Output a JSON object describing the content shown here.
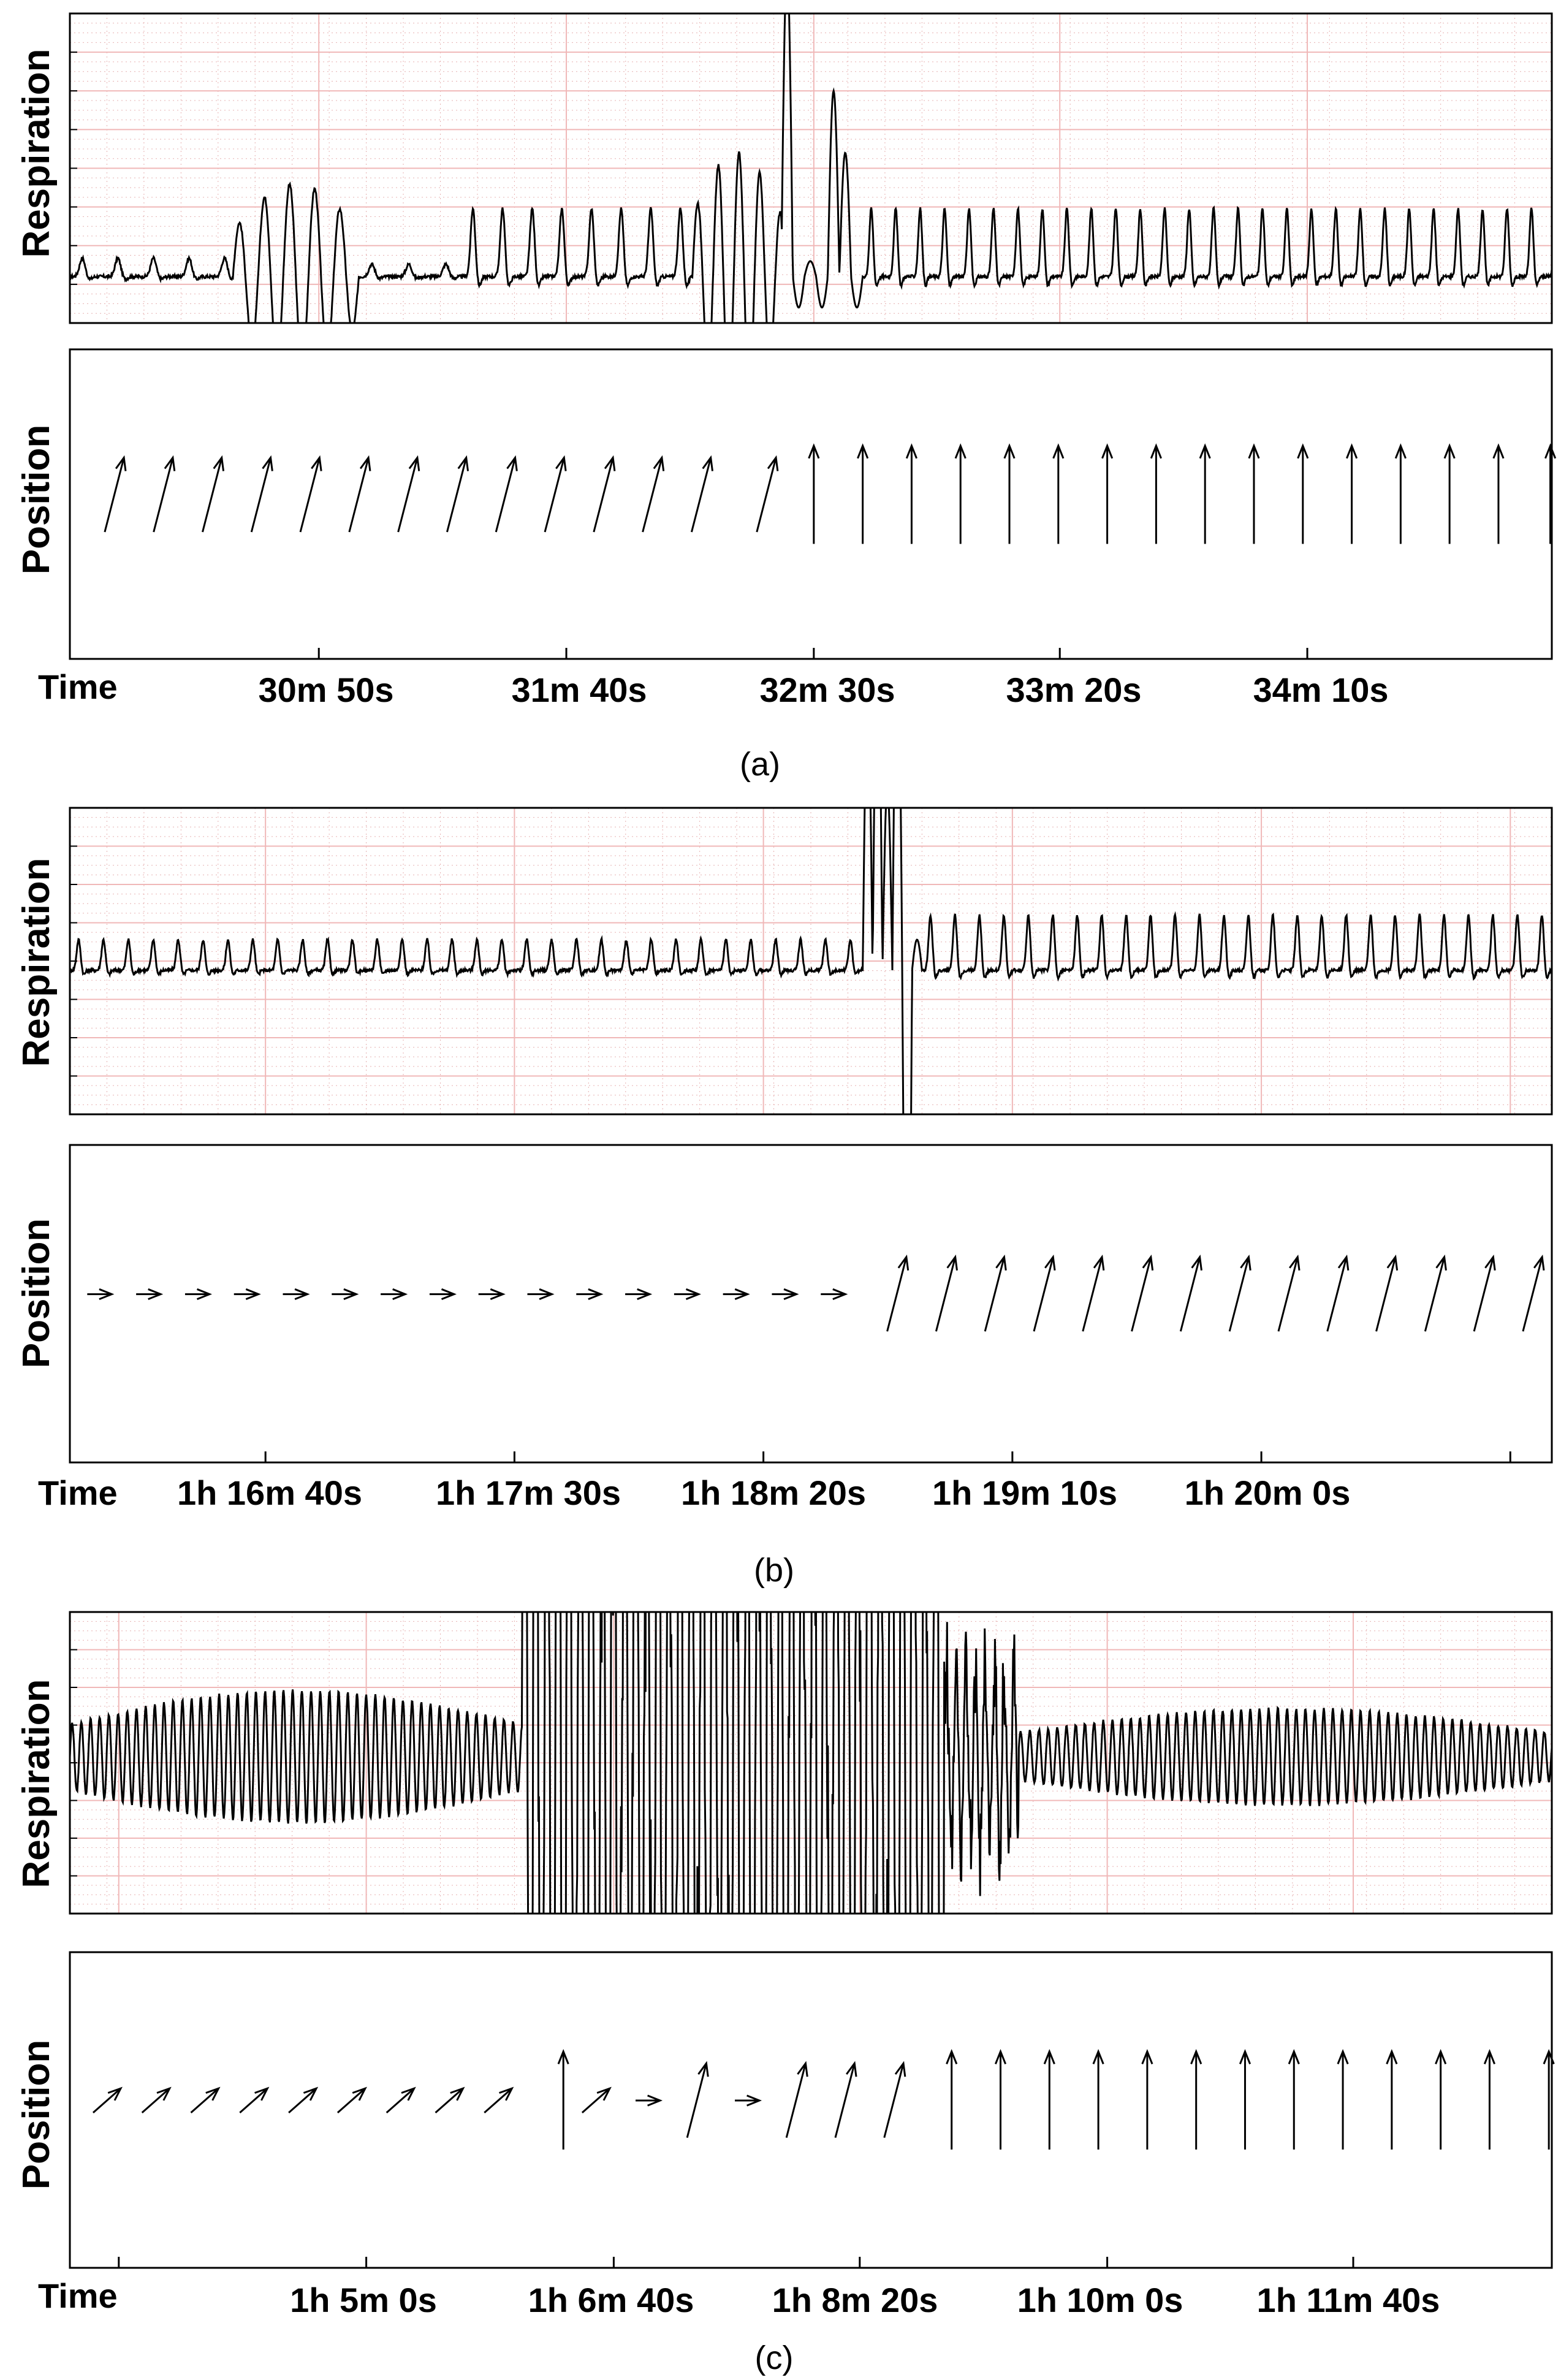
{
  "chart_data": [
    {
      "panel": "a",
      "caption": "(a)",
      "type": "line",
      "respiration": {
        "ylabel": "Respiration",
        "baseline": 0.15,
        "segments": [
          {
            "t0": 0.0,
            "t1": 0.11,
            "period": 0.024,
            "amp": 0.06,
            "shape": "peaky"
          },
          {
            "t0": 0.11,
            "t1": 0.195,
            "period": 0.017,
            "amp": 0.3,
            "shape": "osc"
          },
          {
            "t0": 0.195,
            "t1": 0.265,
            "period": 0.025,
            "amp": 0.04,
            "shape": "peaky"
          },
          {
            "t0": 0.265,
            "t1": 0.42,
            "period": 0.02,
            "amp": 0.22,
            "shape": "peaky"
          },
          {
            "t0": 0.42,
            "t1": 0.48,
            "period": 0.014,
            "amp": 0.4,
            "shape": "osc"
          },
          {
            "t0": 0.48,
            "t1": 0.535,
            "period": 0.01,
            "amp": 0.0,
            "shape": "artifact",
            "peaks": [
              1.0,
              -0.1,
              0.05,
              -0.1,
              0.6,
              0.4,
              -0.1
            ]
          },
          {
            "t0": 0.535,
            "t1": 1.0,
            "period": 0.0165,
            "amp": 0.22,
            "shape": "peaky"
          }
        ]
      },
      "position": {
        "ylabel": "Position",
        "arrows": [
          {
            "t": 0.03,
            "dir": "up-right"
          },
          {
            "t": 0.063,
            "dir": "up-right"
          },
          {
            "t": 0.096,
            "dir": "up-right"
          },
          {
            "t": 0.129,
            "dir": "up-right"
          },
          {
            "t": 0.162,
            "dir": "up-right"
          },
          {
            "t": 0.195,
            "dir": "up-right"
          },
          {
            "t": 0.228,
            "dir": "up-right"
          },
          {
            "t": 0.261,
            "dir": "up-right"
          },
          {
            "t": 0.294,
            "dir": "up-right"
          },
          {
            "t": 0.327,
            "dir": "up-right"
          },
          {
            "t": 0.36,
            "dir": "up-right"
          },
          {
            "t": 0.393,
            "dir": "up-right"
          },
          {
            "t": 0.426,
            "dir": "up-right"
          },
          {
            "t": 0.47,
            "dir": "up-right"
          },
          {
            "t": 0.502,
            "dir": "up"
          },
          {
            "t": 0.535,
            "dir": "up"
          },
          {
            "t": 0.568,
            "dir": "up"
          },
          {
            "t": 0.601,
            "dir": "up"
          },
          {
            "t": 0.634,
            "dir": "up"
          },
          {
            "t": 0.667,
            "dir": "up"
          },
          {
            "t": 0.7,
            "dir": "up"
          },
          {
            "t": 0.733,
            "dir": "up"
          },
          {
            "t": 0.766,
            "dir": "up"
          },
          {
            "t": 0.799,
            "dir": "up"
          },
          {
            "t": 0.832,
            "dir": "up"
          },
          {
            "t": 0.865,
            "dir": "up"
          },
          {
            "t": 0.898,
            "dir": "up"
          },
          {
            "t": 0.931,
            "dir": "up"
          },
          {
            "t": 0.964,
            "dir": "up"
          },
          {
            "t": 0.999,
            "dir": "up"
          }
        ]
      },
      "xlabel": "Time",
      "xticks": [
        {
          "t": 0.0,
          "label": ""
        },
        {
          "t": 0.168,
          "label": "30m 50s"
        },
        {
          "t": 0.335,
          "label": "31m 40s"
        },
        {
          "t": 0.502,
          "label": "32m 30s"
        },
        {
          "t": 0.668,
          "label": "33m 20s"
        },
        {
          "t": 0.835,
          "label": "34m 10s"
        }
      ],
      "grid": true
    },
    {
      "panel": "b",
      "caption": "(b)",
      "type": "line",
      "respiration": {
        "ylabel": "Respiration",
        "baseline": 0.47,
        "segments": [
          {
            "t0": 0.0,
            "t1": 0.535,
            "period": 0.0168,
            "amp": 0.1,
            "shape": "peaky"
          },
          {
            "t0": 0.535,
            "t1": 0.575,
            "period": 0.008,
            "amp": 0.0,
            "shape": "artifact",
            "peaks": [
              0.9,
              1.1,
              0.6,
              1.2,
              -1.5,
              0.1
            ]
          },
          {
            "t0": 0.575,
            "t1": 1.0,
            "period": 0.0165,
            "amp": 0.18,
            "shape": "peaky"
          }
        ]
      },
      "position": {
        "ylabel": "Position",
        "arrows": [
          {
            "t": 0.02,
            "dir": "right"
          },
          {
            "t": 0.053,
            "dir": "right"
          },
          {
            "t": 0.086,
            "dir": "right"
          },
          {
            "t": 0.119,
            "dir": "right"
          },
          {
            "t": 0.152,
            "dir": "right"
          },
          {
            "t": 0.185,
            "dir": "right"
          },
          {
            "t": 0.218,
            "dir": "right"
          },
          {
            "t": 0.251,
            "dir": "right"
          },
          {
            "t": 0.284,
            "dir": "right"
          },
          {
            "t": 0.317,
            "dir": "right"
          },
          {
            "t": 0.35,
            "dir": "right"
          },
          {
            "t": 0.383,
            "dir": "right"
          },
          {
            "t": 0.416,
            "dir": "right"
          },
          {
            "t": 0.449,
            "dir": "right"
          },
          {
            "t": 0.482,
            "dir": "right"
          },
          {
            "t": 0.515,
            "dir": "right"
          },
          {
            "t": 0.558,
            "dir": "up-right"
          },
          {
            "t": 0.591,
            "dir": "up-right"
          },
          {
            "t": 0.624,
            "dir": "up-right"
          },
          {
            "t": 0.657,
            "dir": "up-right"
          },
          {
            "t": 0.69,
            "dir": "up-right"
          },
          {
            "t": 0.723,
            "dir": "up-right"
          },
          {
            "t": 0.756,
            "dir": "up-right"
          },
          {
            "t": 0.789,
            "dir": "up-right"
          },
          {
            "t": 0.822,
            "dir": "up-right"
          },
          {
            "t": 0.855,
            "dir": "up-right"
          },
          {
            "t": 0.888,
            "dir": "up-right"
          },
          {
            "t": 0.921,
            "dir": "up-right"
          },
          {
            "t": 0.954,
            "dir": "up-right"
          },
          {
            "t": 0.987,
            "dir": "up-right"
          }
        ]
      },
      "xlabel": "Time",
      "xticks": [
        {
          "t": 0.0,
          "label": ""
        },
        {
          "t": 0.132,
          "label": "1h 16m 40s"
        },
        {
          "t": 0.3,
          "label": "1h 17m 30s"
        },
        {
          "t": 0.468,
          "label": "1h 18m 20s"
        },
        {
          "t": 0.636,
          "label": "1h 19m 10s"
        },
        {
          "t": 0.804,
          "label": "1h 20m 0s"
        },
        {
          "t": 0.972,
          "label": ""
        }
      ],
      "grid": true
    },
    {
      "panel": "c",
      "caption": "(c)",
      "type": "line",
      "respiration": {
        "ylabel": "Respiration",
        "baseline": 0.52,
        "segments": [
          {
            "t0": 0.0,
            "t1": 0.305,
            "period": 0.0062,
            "amp": 0.22,
            "shape": "osc"
          },
          {
            "t0": 0.305,
            "t1": 0.59,
            "period": 0.0075,
            "amp": 1.8,
            "shape": "chaos"
          },
          {
            "t0": 0.59,
            "t1": 0.64,
            "period": 0.0065,
            "amp": 0.35,
            "shape": "chaos"
          },
          {
            "t0": 0.64,
            "t1": 1.0,
            "period": 0.0062,
            "amp": 0.16,
            "shape": "osc"
          }
        ]
      },
      "position": {
        "ylabel": "Position",
        "arrows": [
          {
            "t": 0.025,
            "dir": "up-right-shallow"
          },
          {
            "t": 0.058,
            "dir": "up-right-shallow"
          },
          {
            "t": 0.091,
            "dir": "up-right-shallow"
          },
          {
            "t": 0.124,
            "dir": "up-right-shallow"
          },
          {
            "t": 0.157,
            "dir": "up-right-shallow"
          },
          {
            "t": 0.19,
            "dir": "up-right-shallow"
          },
          {
            "t": 0.223,
            "dir": "up-right-shallow"
          },
          {
            "t": 0.256,
            "dir": "up-right-shallow"
          },
          {
            "t": 0.289,
            "dir": "up-right-shallow"
          },
          {
            "t": 0.333,
            "dir": "up"
          },
          {
            "t": 0.355,
            "dir": "up-right-shallow"
          },
          {
            "t": 0.39,
            "dir": "right"
          },
          {
            "t": 0.423,
            "dir": "up-right"
          },
          {
            "t": 0.457,
            "dir": "right"
          },
          {
            "t": 0.49,
            "dir": "up-right"
          },
          {
            "t": 0.523,
            "dir": "up-right"
          },
          {
            "t": 0.556,
            "dir": "up-right"
          },
          {
            "t": 0.595,
            "dir": "up"
          },
          {
            "t": 0.628,
            "dir": "up"
          },
          {
            "t": 0.661,
            "dir": "up"
          },
          {
            "t": 0.694,
            "dir": "up"
          },
          {
            "t": 0.727,
            "dir": "up"
          },
          {
            "t": 0.76,
            "dir": "up"
          },
          {
            "t": 0.793,
            "dir": "up"
          },
          {
            "t": 0.826,
            "dir": "up"
          },
          {
            "t": 0.859,
            "dir": "up"
          },
          {
            "t": 0.892,
            "dir": "up"
          },
          {
            "t": 0.925,
            "dir": "up"
          },
          {
            "t": 0.958,
            "dir": "up"
          },
          {
            "t": 0.998,
            "dir": "up"
          }
        ]
      },
      "xlabel": "Time",
      "xticks": [
        {
          "t": 0.033,
          "label": ""
        },
        {
          "t": 0.2,
          "label": "1h 5m 0s"
        },
        {
          "t": 0.367,
          "label": "1h 6m 40s"
        },
        {
          "t": 0.533,
          "label": "1h 8m 20s"
        },
        {
          "t": 0.7,
          "label": "1h 10m 0s"
        },
        {
          "t": 0.866,
          "label": "1h 11m 40s"
        }
      ],
      "grid": true
    }
  ]
}
